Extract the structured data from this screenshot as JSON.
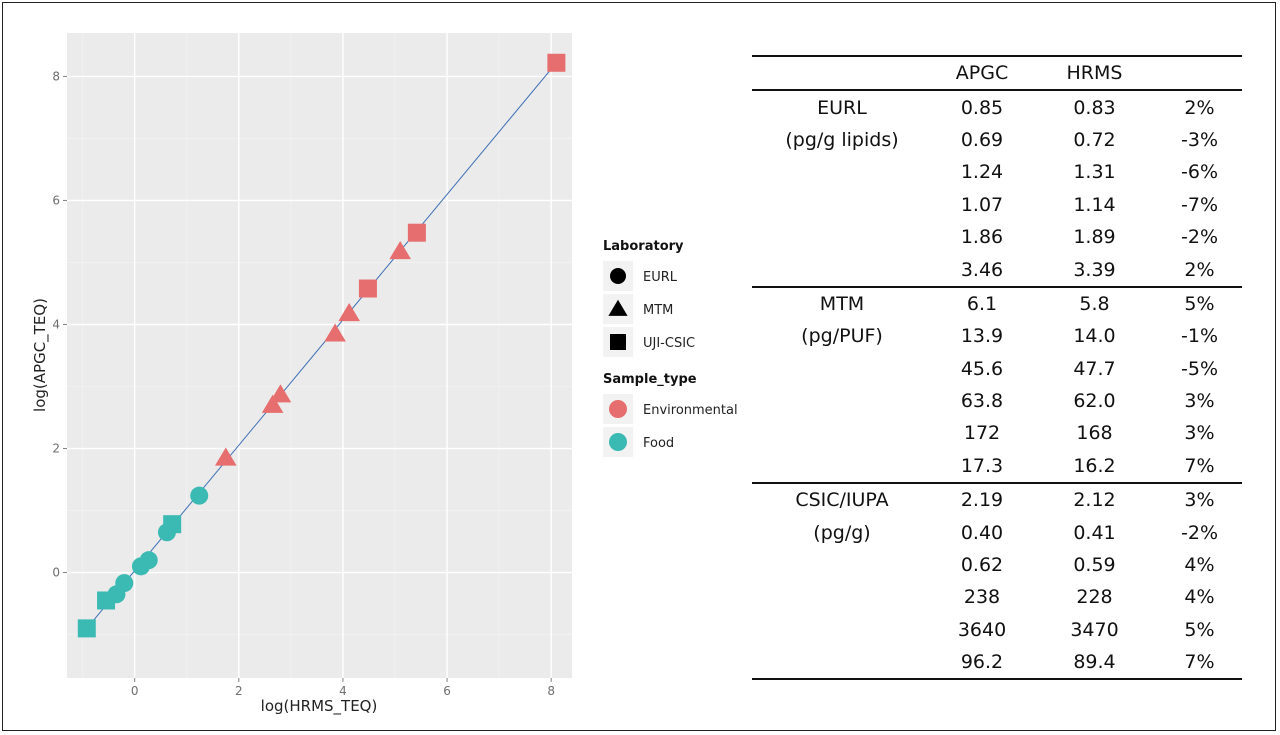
{
  "chart_data": {
    "type": "scatter",
    "xlabel": "log(HRMS_TEQ)",
    "ylabel": "log(APGC_TEQ)",
    "xlim": [
      -1.3,
      8.4
    ],
    "ylim": [
      -1.7,
      8.7
    ],
    "xticks": [
      0,
      2,
      4,
      6,
      8
    ],
    "yticks": [
      0,
      2,
      4,
      6,
      8
    ],
    "grid": true,
    "background": "#ebebeb",
    "fit_line": {
      "from": [
        -0.92,
        -0.9
      ],
      "to": [
        8.1,
        8.22
      ],
      "color": "#3d6fb5"
    },
    "legend_placement": "right",
    "legends": [
      {
        "title": "Laboratory",
        "entries": [
          {
            "label": "EURL",
            "shape": "circle"
          },
          {
            "label": "MTM",
            "shape": "triangle"
          },
          {
            "label": "UJI-CSIC",
            "shape": "square"
          }
        ]
      },
      {
        "title": "Sample_type",
        "entries": [
          {
            "label": "Environmental",
            "color": "#e66e6e"
          },
          {
            "label": "Food",
            "color": "#3bbab3"
          }
        ]
      }
    ],
    "colors": {
      "Environmental": "#e66e6e",
      "Food": "#3bbab3"
    },
    "points": [
      {
        "x": -0.92,
        "y": -0.9,
        "shape": "square",
        "type": "Food"
      },
      {
        "x": -0.55,
        "y": -0.45,
        "shape": "square",
        "type": "Food"
      },
      {
        "x": -0.35,
        "y": -0.35,
        "shape": "circle",
        "type": "Food"
      },
      {
        "x": -0.2,
        "y": -0.17,
        "shape": "circle",
        "type": "Food"
      },
      {
        "x": 0.12,
        "y": 0.1,
        "shape": "circle",
        "type": "Food"
      },
      {
        "x": 0.27,
        "y": 0.2,
        "shape": "circle",
        "type": "Food"
      },
      {
        "x": 0.62,
        "y": 0.65,
        "shape": "circle",
        "type": "Food"
      },
      {
        "x": 0.72,
        "y": 0.78,
        "shape": "square",
        "type": "Food"
      },
      {
        "x": 1.24,
        "y": 1.24,
        "shape": "circle",
        "type": "Food"
      },
      {
        "x": 1.75,
        "y": 1.85,
        "shape": "triangle",
        "type": "Environmental"
      },
      {
        "x": 2.65,
        "y": 2.7,
        "shape": "triangle",
        "type": "Environmental"
      },
      {
        "x": 2.8,
        "y": 2.87,
        "shape": "triangle",
        "type": "Environmental"
      },
      {
        "x": 3.85,
        "y": 3.85,
        "shape": "triangle",
        "type": "Environmental"
      },
      {
        "x": 4.12,
        "y": 4.18,
        "shape": "triangle",
        "type": "Environmental"
      },
      {
        "x": 4.48,
        "y": 4.58,
        "shape": "square",
        "type": "Environmental"
      },
      {
        "x": 5.1,
        "y": 5.18,
        "shape": "triangle",
        "type": "Environmental"
      },
      {
        "x": 5.42,
        "y": 5.48,
        "shape": "square",
        "type": "Environmental"
      },
      {
        "x": 8.1,
        "y": 8.22,
        "shape": "square",
        "type": "Environmental"
      }
    ]
  },
  "table": {
    "headers": [
      "",
      "APGC",
      "HRMS",
      ""
    ],
    "groups": [
      {
        "rows": [
          [
            "EURL",
            "0.85",
            "0.83",
            "2%"
          ],
          [
            "(pg/g lipids)",
            "0.69",
            "0.72",
            "-3%"
          ],
          [
            "",
            "1.24",
            "1.31",
            "-6%"
          ],
          [
            "",
            "1.07",
            "1.14",
            "-7%"
          ],
          [
            "",
            "1.86",
            "1.89",
            "-2%"
          ],
          [
            "",
            "3.46",
            "3.39",
            "2%"
          ]
        ]
      },
      {
        "rows": [
          [
            "MTM",
            "6.1",
            "5.8",
            "5%"
          ],
          [
            "(pg/PUF)",
            "13.9",
            "14.0",
            "-1%"
          ],
          [
            "",
            "45.6",
            "47.7",
            "-5%"
          ],
          [
            "",
            "63.8",
            "62.0",
            "3%"
          ],
          [
            "",
            "172",
            "168",
            "3%"
          ],
          [
            "",
            "17.3",
            "16.2",
            "7%"
          ]
        ]
      },
      {
        "rows": [
          [
            "CSIC/IUPA",
            "2.19",
            "2.12",
            "3%"
          ],
          [
            "(pg/g)",
            "0.40",
            "0.41",
            "-2%"
          ],
          [
            "",
            "0.62",
            "0.59",
            "4%"
          ],
          [
            "",
            "238",
            "228",
            "4%"
          ],
          [
            "",
            "3640",
            "3470",
            "5%"
          ],
          [
            "",
            "96.2",
            "89.4",
            "7%"
          ]
        ]
      }
    ]
  }
}
